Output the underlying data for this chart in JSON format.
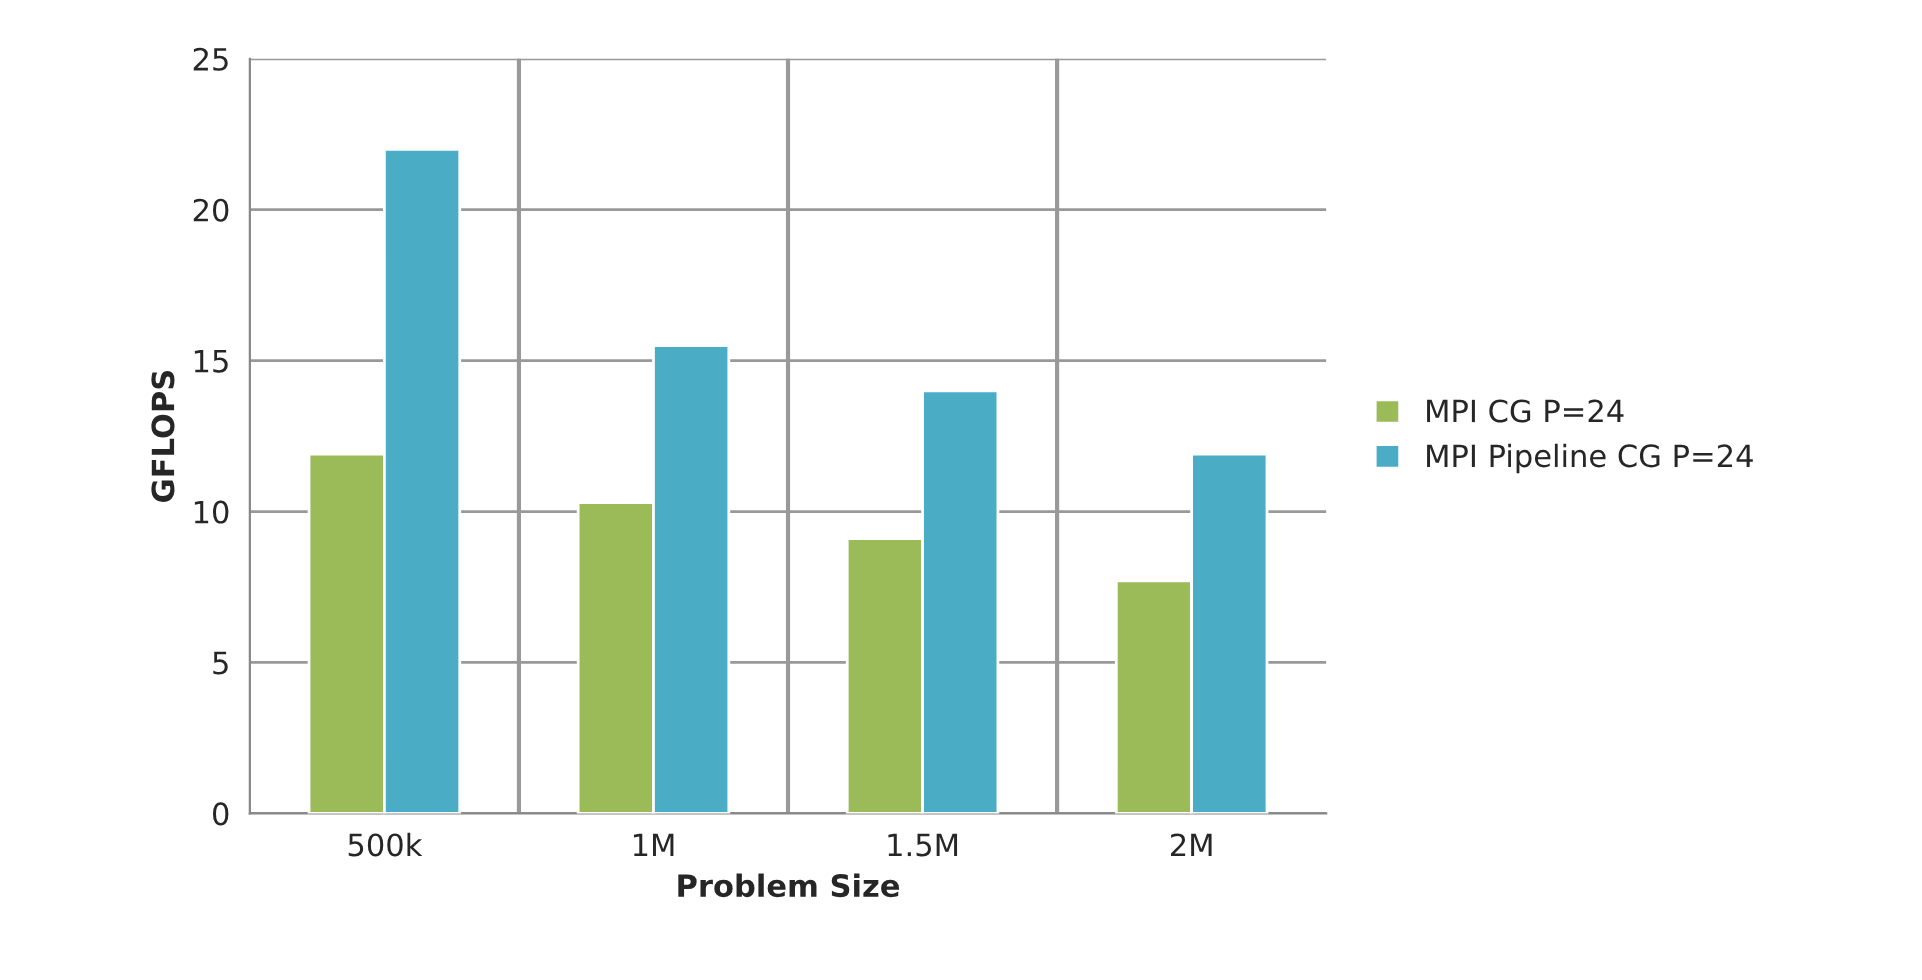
{
  "chart_data": {
    "type": "bar",
    "xlabel": "Problem Size",
    "ylabel": "GFLOPS",
    "categories": [
      "500k",
      "1M",
      "1.5M",
      "2M"
    ],
    "series": [
      {
        "name": "MPI CG P=24",
        "color": "#9bbb59",
        "values": [
          11.9,
          10.3,
          9.1,
          7.7
        ]
      },
      {
        "name": "MPI Pipeline CG P=24",
        "color": "#4bacc6",
        "values": [
          22,
          15.5,
          14,
          11.9
        ]
      }
    ],
    "ylim": [
      0,
      25
    ],
    "yticks": [
      0,
      5,
      10,
      15,
      20,
      25
    ],
    "grid": true,
    "legend": "right"
  }
}
